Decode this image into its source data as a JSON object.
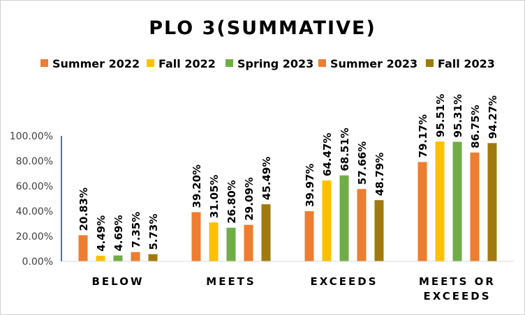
{
  "chart_data": {
    "type": "bar",
    "title": "PLO 3(SUMMATIVE)",
    "categories": [
      [
        "BELOW"
      ],
      [
        "MEETS"
      ],
      [
        "EXCEEDS"
      ],
      [
        "MEETS OR",
        "EXCEEDS"
      ]
    ],
    "series": [
      {
        "name": "Summer 2022",
        "color": "#ED7D31",
        "values": [
          20.83,
          39.2,
          39.97,
          79.17
        ],
        "labels": [
          "20.83%",
          "39.20%",
          "39.97%",
          "79.17%"
        ]
      },
      {
        "name": "Fall 2022",
        "color": "#FFC000",
        "values": [
          4.49,
          31.05,
          64.47,
          95.51
        ],
        "labels": [
          "4.49%",
          "31.05%",
          "64.47%",
          "95.51%"
        ]
      },
      {
        "name": "Spring 2023",
        "color": "#70AD47",
        "values": [
          4.69,
          26.8,
          68.51,
          95.31
        ],
        "labels": [
          "4.69%",
          "26.80%",
          "68.51%",
          "95.31%"
        ]
      },
      {
        "name": "Summer 2023",
        "color": "#ED7D31",
        "values": [
          7.35,
          29.09,
          57.66,
          86.75
        ],
        "labels": [
          "7.35%",
          "29.09%",
          "57.66%",
          "86.75%"
        ]
      },
      {
        "name": "Fall 2023",
        "color": "#A07A0E",
        "values": [
          5.73,
          45.49,
          48.79,
          94.27
        ],
        "labels": [
          "5.73%",
          "45.49%",
          "48.79%",
          "94.27%"
        ]
      }
    ],
    "ylim": [
      0,
      100
    ],
    "yticks": [
      0,
      20,
      40,
      60,
      80,
      100
    ],
    "ytick_labels": [
      "0.00%",
      "20.00%",
      "40.00%",
      "60.00%",
      "80.00%",
      "100.00%"
    ],
    "xlabel": "",
    "ylabel": "",
    "grid": false,
    "legend_position": "top"
  }
}
